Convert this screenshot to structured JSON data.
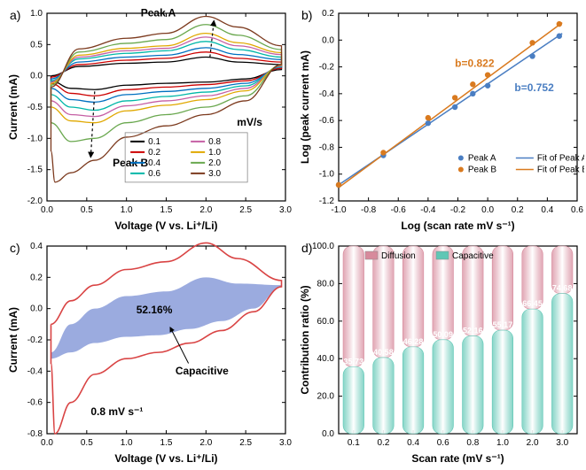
{
  "panel_labels": {
    "a": "a)",
    "b": "b)",
    "c": "c)",
    "d": "d)"
  },
  "a": {
    "xlabel": "Voltage  (V vs. Li⁺/Li)",
    "ylabel": "Current  (mA)",
    "xlim": [
      0.0,
      3.0
    ],
    "xtick_step": 0.5,
    "ylim": [
      -2.0,
      1.0
    ],
    "ytick_step": 0.5,
    "peak_a_label": "Peak A",
    "peak_b_label": "Peak B",
    "unit_label": "mV/s",
    "scan_rates": [
      "0.1",
      "0.2",
      "0.4",
      "0.6",
      "0.8",
      "1.0",
      "2.0",
      "3.0"
    ],
    "colors": [
      "#000000",
      "#cc0000",
      "#0070c0",
      "#00b7a8",
      "#c55fa4",
      "#e0a800",
      "#6aa84f",
      "#7c3a1e"
    ],
    "series": [
      {
        "top": [
          [
            0.05,
            0.0
          ],
          [
            0.4,
            0.15
          ],
          [
            1.0,
            0.2
          ],
          [
            1.5,
            0.22
          ],
          [
            2.0,
            0.3
          ],
          [
            2.4,
            0.22
          ],
          [
            2.95,
            0.18
          ]
        ],
        "bot": [
          [
            2.95,
            0.1
          ],
          [
            2.5,
            -0.05
          ],
          [
            2.0,
            -0.1
          ],
          [
            1.5,
            -0.12
          ],
          [
            1.0,
            -0.15
          ],
          [
            0.6,
            -0.22
          ],
          [
            0.3,
            -0.2
          ],
          [
            0.05,
            -0.08
          ]
        ]
      },
      {
        "top": [
          [
            0.05,
            -0.02
          ],
          [
            0.4,
            0.18
          ],
          [
            1.0,
            0.25
          ],
          [
            1.5,
            0.28
          ],
          [
            2.0,
            0.38
          ],
          [
            2.4,
            0.28
          ],
          [
            2.95,
            0.22
          ]
        ],
        "bot": [
          [
            2.95,
            0.12
          ],
          [
            2.5,
            -0.08
          ],
          [
            2.0,
            -0.14
          ],
          [
            1.5,
            -0.18
          ],
          [
            1.0,
            -0.22
          ],
          [
            0.6,
            -0.32
          ],
          [
            0.3,
            -0.28
          ],
          [
            0.05,
            -0.12
          ]
        ]
      },
      {
        "top": [
          [
            0.05,
            -0.05
          ],
          [
            0.4,
            0.22
          ],
          [
            1.0,
            0.3
          ],
          [
            1.5,
            0.33
          ],
          [
            2.0,
            0.45
          ],
          [
            2.4,
            0.34
          ],
          [
            2.95,
            0.26
          ]
        ],
        "bot": [
          [
            2.95,
            0.14
          ],
          [
            2.5,
            -0.12
          ],
          [
            2.0,
            -0.2
          ],
          [
            1.5,
            -0.25
          ],
          [
            1.0,
            -0.3
          ],
          [
            0.6,
            -0.42
          ],
          [
            0.3,
            -0.38
          ],
          [
            0.05,
            -0.2
          ]
        ]
      },
      {
        "top": [
          [
            0.05,
            -0.08
          ],
          [
            0.4,
            0.27
          ],
          [
            1.0,
            0.36
          ],
          [
            1.5,
            0.4
          ],
          [
            2.0,
            0.55
          ],
          [
            2.4,
            0.42
          ],
          [
            2.95,
            0.3
          ]
        ],
        "bot": [
          [
            2.95,
            0.15
          ],
          [
            2.5,
            -0.16
          ],
          [
            2.0,
            -0.26
          ],
          [
            1.5,
            -0.33
          ],
          [
            1.0,
            -0.4
          ],
          [
            0.6,
            -0.55
          ],
          [
            0.3,
            -0.5
          ],
          [
            0.05,
            -0.3
          ]
        ]
      },
      {
        "top": [
          [
            0.05,
            -0.1
          ],
          [
            0.4,
            0.3
          ],
          [
            1.0,
            0.4
          ],
          [
            1.5,
            0.44
          ],
          [
            2.0,
            0.62
          ],
          [
            2.4,
            0.48
          ],
          [
            2.95,
            0.34
          ]
        ],
        "bot": [
          [
            2.95,
            0.16
          ],
          [
            2.5,
            -0.2
          ],
          [
            2.0,
            -0.32
          ],
          [
            1.5,
            -0.4
          ],
          [
            1.0,
            -0.48
          ],
          [
            0.6,
            -0.65
          ],
          [
            0.3,
            -0.62
          ],
          [
            0.05,
            -0.4
          ]
        ]
      },
      {
        "top": [
          [
            0.05,
            -0.12
          ],
          [
            0.4,
            0.33
          ],
          [
            1.0,
            0.44
          ],
          [
            1.5,
            0.48
          ],
          [
            2.0,
            0.68
          ],
          [
            2.4,
            0.53
          ],
          [
            2.95,
            0.37
          ]
        ],
        "bot": [
          [
            2.95,
            0.17
          ],
          [
            2.5,
            -0.24
          ],
          [
            2.0,
            -0.38
          ],
          [
            1.5,
            -0.47
          ],
          [
            1.0,
            -0.56
          ],
          [
            0.6,
            -0.75
          ],
          [
            0.3,
            -0.72
          ],
          [
            0.05,
            -0.5
          ]
        ]
      },
      {
        "top": [
          [
            0.05,
            -0.15
          ],
          [
            0.4,
            0.38
          ],
          [
            1.0,
            0.52
          ],
          [
            1.5,
            0.58
          ],
          [
            2.0,
            0.82
          ],
          [
            2.4,
            0.65
          ],
          [
            2.95,
            0.42
          ]
        ],
        "bot": [
          [
            2.95,
            0.18
          ],
          [
            2.5,
            -0.32
          ],
          [
            2.0,
            -0.5
          ],
          [
            1.5,
            -0.62
          ],
          [
            1.0,
            -0.75
          ],
          [
            0.6,
            -1.0
          ],
          [
            0.3,
            -1.05
          ],
          [
            0.05,
            -0.75
          ]
        ]
      },
      {
        "top": [
          [
            0.05,
            -0.18
          ],
          [
            0.4,
            0.43
          ],
          [
            1.0,
            0.6
          ],
          [
            1.5,
            0.68
          ],
          [
            2.0,
            0.95
          ],
          [
            2.4,
            0.78
          ],
          [
            2.95,
            0.48
          ]
        ],
        "bot": [
          [
            2.95,
            0.18
          ],
          [
            2.5,
            -0.4
          ],
          [
            2.0,
            -0.62
          ],
          [
            1.5,
            -0.8
          ],
          [
            1.0,
            -0.98
          ],
          [
            0.6,
            -1.35
          ],
          [
            0.3,
            -1.55
          ],
          [
            0.1,
            -1.7
          ],
          [
            0.05,
            -1.2
          ]
        ]
      }
    ]
  },
  "b": {
    "xlabel": "Log  (scan rate  mV s⁻¹)",
    "ylabel": "Log (peak current mA)",
    "xlim": [
      -1.0,
      0.6
    ],
    "xtick_step": 0.2,
    "ylim": [
      -1.2,
      0.2
    ],
    "ytick_step": 0.2,
    "bA": "b=0.822",
    "bB": "b=0.752",
    "legend": [
      "Peak A",
      "Peak B",
      "Fit of Peak A",
      "Fit of Peak B"
    ],
    "color_A": "#4a7ec2",
    "color_B": "#d97a1f",
    "ptsA": [
      [
        -1.0,
        -1.08
      ],
      [
        -0.7,
        -0.86
      ],
      [
        -0.4,
        -0.62
      ],
      [
        -0.22,
        -0.5
      ],
      [
        -0.1,
        -0.4
      ],
      [
        0.0,
        -0.34
      ],
      [
        0.3,
        -0.12
      ],
      [
        0.48,
        0.03
      ]
    ],
    "ptsB": [
      [
        -1.0,
        -1.08
      ],
      [
        -0.7,
        -0.84
      ],
      [
        -0.4,
        -0.58
      ],
      [
        -0.22,
        -0.43
      ],
      [
        -0.1,
        -0.33
      ],
      [
        0.0,
        -0.26
      ],
      [
        0.3,
        -0.02
      ],
      [
        0.48,
        0.12
      ]
    ],
    "fitA": [
      [
        -1.0,
        -1.08
      ],
      [
        0.5,
        0.05
      ]
    ],
    "fitB": [
      [
        -1.0,
        -1.1
      ],
      [
        0.5,
        0.13
      ]
    ]
  },
  "c": {
    "xlabel": "Voltage  (V vs. Li⁺/Li)",
    "ylabel": "Current  (mA)",
    "xlim": [
      0.0,
      3.0
    ],
    "xtick_step": 0.5,
    "ylim": [
      -0.8,
      0.4
    ],
    "ytick_step": 0.2,
    "percent_label": "52.16%",
    "cap_label": "Capacitive",
    "rate_label": "0.8 mV s⁻¹",
    "outline_color": "#d94444",
    "fill_color": "#8a9cd9",
    "cv_top": [
      [
        0.05,
        -0.1
      ],
      [
        0.3,
        0.05
      ],
      [
        0.6,
        0.15
      ],
      [
        1.0,
        0.25
      ],
      [
        1.5,
        0.3
      ],
      [
        2.0,
        0.42
      ],
      [
        2.4,
        0.32
      ],
      [
        2.95,
        0.18
      ]
    ],
    "cv_bot": [
      [
        2.95,
        0.14
      ],
      [
        2.6,
        -0.02
      ],
      [
        2.2,
        -0.14
      ],
      [
        1.8,
        -0.22
      ],
      [
        1.4,
        -0.28
      ],
      [
        1.0,
        -0.32
      ],
      [
        0.6,
        -0.42
      ],
      [
        0.3,
        -0.6
      ],
      [
        0.1,
        -0.8
      ],
      [
        0.05,
        -0.35
      ]
    ],
    "cap_top": [
      [
        0.05,
        -0.28
      ],
      [
        0.3,
        -0.1
      ],
      [
        0.6,
        0.0
      ],
      [
        1.0,
        0.08
      ],
      [
        1.5,
        0.11
      ],
      [
        2.0,
        0.2
      ],
      [
        2.4,
        0.16
      ],
      [
        2.95,
        0.15
      ]
    ],
    "cap_bot": [
      [
        2.95,
        0.14
      ],
      [
        2.6,
        0.0
      ],
      [
        2.2,
        -0.08
      ],
      [
        1.8,
        -0.13
      ],
      [
        1.4,
        -0.17
      ],
      [
        1.0,
        -0.18
      ],
      [
        0.6,
        -0.22
      ],
      [
        0.3,
        -0.28
      ],
      [
        0.05,
        -0.32
      ]
    ]
  },
  "d": {
    "xlabel": "Scan rate  (mV s⁻¹)",
    "ylabel": "Contribution ratio   (%)",
    "xticks": [
      "0.1",
      "0.2",
      "0.4",
      "0.6",
      "0.8",
      "1.0",
      "2.0",
      "3.0"
    ],
    "ylim": [
      0,
      100
    ],
    "ytick_step": 20,
    "cap_vals": [
      35.73,
      40.58,
      46.28,
      50.09,
      52.16,
      55.17,
      66.45,
      74.68
    ],
    "cap_color": "#5fc7b5",
    "diff_color": "#d78a9c",
    "legend": [
      "Diffusion",
      "Capacitive"
    ],
    "bar_width": 0.7
  }
}
